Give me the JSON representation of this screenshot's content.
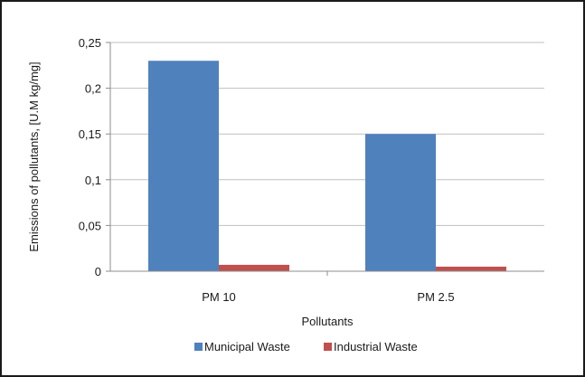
{
  "chart_data": {
    "type": "bar",
    "title": "",
    "categories": [
      "PM 10",
      "PM 2.5"
    ],
    "series": [
      {
        "name": "Municipal Waste",
        "values": [
          0.23,
          0.15
        ],
        "color": "#4F81BD"
      },
      {
        "name": "Industrial Waste",
        "values": [
          0.007,
          0.005
        ],
        "color": "#C0504D"
      }
    ],
    "xlabel": "Pollutants",
    "ylabel": "Emissions of pollutants, [U.M kg/mg]",
    "ylim": [
      0,
      0.25
    ],
    "yticks": [
      0,
      0.05,
      0.1,
      0.15,
      0.2,
      0.25
    ],
    "ytick_labels": [
      "0",
      "0,05",
      "0,1",
      "0,15",
      "0,2",
      "0,25"
    ],
    "grid": true,
    "legend_position": "bottom"
  }
}
